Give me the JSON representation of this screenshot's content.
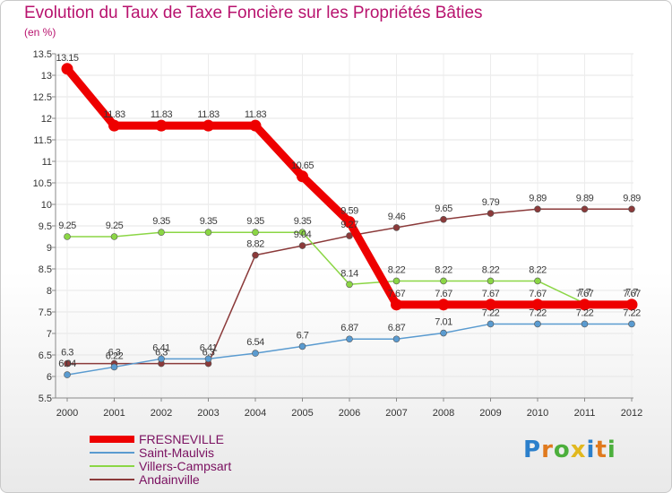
{
  "title": "Evolution du Taux de Taxe Foncière sur les Propriétés Bâties",
  "subtitle": "(en %)",
  "brand": {
    "letters": [
      "P",
      "r",
      "o",
      "x",
      "i",
      "t",
      "i"
    ],
    "colors": [
      "#2b7fcb",
      "#e07a1e",
      "#4caf3c",
      "#e1b81f",
      "#2b7fcb",
      "#e07a1e",
      "#4caf3c"
    ]
  },
  "chart_data": {
    "type": "line",
    "title": "Evolution du Taux de Taxe Foncière sur les Propriétés Bâties",
    "ylabel": "(en %)",
    "xlabel": "",
    "x": [
      "2000",
      "2001",
      "2002",
      "2003",
      "2004",
      "2005",
      "2006",
      "2007",
      "2008",
      "2009",
      "2010",
      "2011",
      "2012"
    ],
    "ylim": [
      5.5,
      13.5
    ],
    "yticks": [
      "5.5",
      "6",
      "6.5",
      "7",
      "7.5",
      "8",
      "8.5",
      "9",
      "9.5",
      "10",
      "10.5",
      "11",
      "11.5",
      "12",
      "12.5",
      "13",
      "13.5"
    ],
    "series": [
      {
        "name": "FRESNEVILLE",
        "color": "#ee0000",
        "values": [
          13.15,
          11.83,
          11.83,
          11.83,
          11.83,
          10.65,
          9.59,
          7.67,
          7.67,
          7.67,
          7.67,
          7.67,
          7.67
        ],
        "labels": [
          "13.15",
          "11.83",
          "11.83",
          "11.83",
          "11.83",
          "10.65",
          "9.59",
          "7.67",
          "7.67",
          "7.67",
          "7.67",
          "7.67",
          "7.67"
        ]
      },
      {
        "name": "Saint-Maulvis",
        "color": "#5a9bd0",
        "values": [
          6.04,
          6.22,
          6.41,
          6.41,
          6.54,
          6.7,
          6.87,
          6.87,
          7.01,
          7.22,
          7.22,
          7.22,
          7.22
        ],
        "labels": [
          "6.04",
          "6.22",
          "6.41",
          "6.41",
          "6.54",
          "6.7",
          "6.87",
          "6.87",
          "7.01",
          "7.22",
          "7.22",
          "7.22",
          "7.22"
        ]
      },
      {
        "name": "Villers-Campsart",
        "color": "#8bd645",
        "values": [
          9.25,
          9.25,
          9.35,
          9.35,
          9.35,
          9.35,
          8.14,
          8.22,
          8.22,
          8.22,
          8.22,
          7.7,
          7.7
        ],
        "labels": [
          "9.25",
          "9.25",
          "9.35",
          "9.35",
          "9.35",
          "9.35",
          "8.14",
          "8.22",
          "8.22",
          "8.22",
          "8.22",
          "7.7",
          "7.7"
        ]
      },
      {
        "name": "Andainville",
        "color": "#8b3a3a",
        "values": [
          6.3,
          6.3,
          6.3,
          6.3,
          8.82,
          9.04,
          9.27,
          9.46,
          9.65,
          9.79,
          9.89,
          9.89,
          9.89
        ],
        "labels": [
          "6.3",
          "6.3",
          "6.3",
          "6.3",
          "8.82",
          "9.04",
          "9.27",
          "9.46",
          "9.65",
          "9.79",
          "9.89",
          "9.89",
          "9.89"
        ]
      }
    ]
  }
}
